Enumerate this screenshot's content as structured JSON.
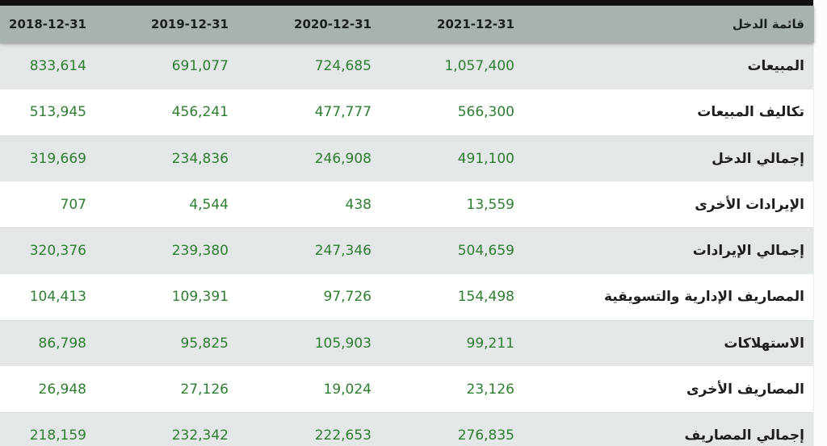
{
  "table": {
    "title_column_label": "قائمة الدخل",
    "date_columns": [
      "2018-12-31",
      "2019-12-31",
      "2020-12-31",
      "2021-12-31"
    ],
    "rows": [
      {
        "label": "المبيعات",
        "values": [
          "833,614",
          "691,077",
          "724,685",
          "1,057,400"
        ]
      },
      {
        "label": "تكاليف المبيعات",
        "values": [
          "513,945",
          "456,241",
          "477,777",
          "566,300"
        ]
      },
      {
        "label": "إجمالي الدخل",
        "values": [
          "319,669",
          "234,836",
          "246,908",
          "491,100"
        ]
      },
      {
        "label": "الإيرادات الأخرى",
        "values": [
          "707",
          "4,544",
          "438",
          "13,559"
        ]
      },
      {
        "label": "إجمالي الإيرادات",
        "values": [
          "320,376",
          "239,380",
          "247,346",
          "504,659"
        ]
      },
      {
        "label": "المصاريف الإدارية والتسويقية",
        "values": [
          "104,413",
          "109,391",
          "97,726",
          "154,498"
        ]
      },
      {
        "label": "الاستهلاكات",
        "values": [
          "86,798",
          "95,825",
          "105,903",
          "99,211"
        ]
      },
      {
        "label": "المصاريف الأخرى",
        "values": [
          "26,948",
          "27,126",
          "19,024",
          "23,126"
        ]
      },
      {
        "label": "إجمالي المصاريف",
        "values": [
          "218,159",
          "232,342",
          "222,653",
          "276,835"
        ]
      }
    ]
  },
  "colors": {
    "value_green": "#2e7d32",
    "header_bg": "#aab1b1",
    "row_alt_bg": "#e3e7e8",
    "row_bg": "#ffffff",
    "top_bar": "#111111"
  }
}
